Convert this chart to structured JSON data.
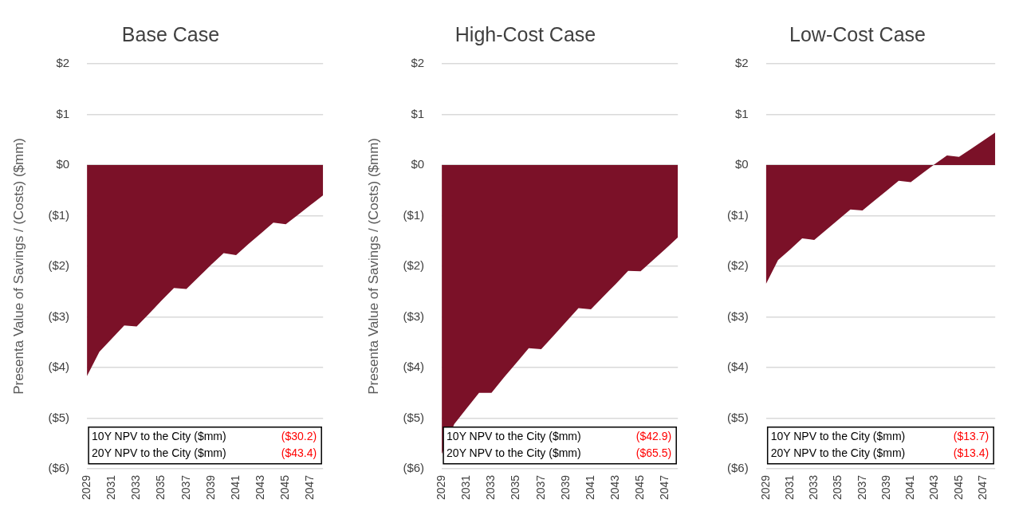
{
  "chart_data": [
    {
      "type": "area",
      "title": "Base Case",
      "ylabel": "Presenta Value of Savings / (Costs) ($mm)",
      "categories": [
        "2029",
        null,
        "2031",
        null,
        "2033",
        null,
        "2035",
        null,
        "2037",
        null,
        "2039",
        null,
        "2041",
        null,
        "2043",
        null,
        "2045",
        null,
        "2047",
        null
      ],
      "series": [
        {
          "color": "#7b1128",
          "values": [
            -4.17,
            -3.69,
            -3.43,
            -3.17,
            -3.19,
            -2.94,
            -2.68,
            -2.43,
            -2.45,
            -2.21,
            -1.97,
            -1.74,
            -1.78,
            -1.56,
            -1.35,
            -1.14,
            -1.17,
            -0.98,
            -0.79,
            -0.6
          ]
        }
      ],
      "ylim": [
        -6,
        2
      ],
      "yticks": [
        {
          "value": -6,
          "label": "($6)"
        },
        {
          "value": -5,
          "label": "($5)"
        },
        {
          "value": -4,
          "label": "($4)"
        },
        {
          "value": -3,
          "label": "($3)"
        },
        {
          "value": -2,
          "label": "($2)"
        },
        {
          "value": -1,
          "label": "($1)"
        },
        {
          "value": 0,
          "label": "$0"
        },
        {
          "value": 1,
          "label": "$1"
        },
        {
          "value": 2,
          "label": "$2"
        }
      ],
      "grid": "y",
      "legend": false,
      "annotations": [
        "10Y NPV to the City ($mm)",
        "($30.2)",
        "20Y NPV to the City ($mm)",
        "($43.4)"
      ]
    },
    {
      "type": "area",
      "title": "High-Cost Case",
      "ylabel": "Presenta Value of Savings / (Costs) ($mm)",
      "categories": [
        "2029",
        null,
        "2031",
        null,
        "2033",
        null,
        "2035",
        null,
        "2037",
        null,
        "2039",
        null,
        "2041",
        null,
        "2043",
        null,
        "2045",
        null,
        "2047",
        null
      ],
      "series": [
        {
          "color": "#7b1128",
          "values": [
            -5.71,
            -5.12,
            -4.81,
            -4.5,
            -4.5,
            -4.2,
            -3.91,
            -3.62,
            -3.64,
            -3.37,
            -3.1,
            -2.83,
            -2.85,
            -2.6,
            -2.35,
            -2.09,
            -2.1,
            -1.88,
            -1.66,
            -1.43
          ]
        }
      ],
      "ylim": [
        -6,
        2
      ],
      "yticks": [
        {
          "value": -6,
          "label": "($6)"
        },
        {
          "value": -5,
          "label": "($5)"
        },
        {
          "value": -4,
          "label": "($4)"
        },
        {
          "value": -3,
          "label": "($3)"
        },
        {
          "value": -2,
          "label": "($2)"
        },
        {
          "value": -1,
          "label": "($1)"
        },
        {
          "value": 0,
          "label": "$0"
        },
        {
          "value": 1,
          "label": "$1"
        },
        {
          "value": 2,
          "label": "$2"
        }
      ],
      "grid": "y",
      "legend": false,
      "annotations": [
        "10Y NPV to the City ($mm)",
        "($42.9)",
        "20Y NPV to the City ($mm)",
        "($65.5)"
      ]
    },
    {
      "type": "area",
      "title": "Low-Cost Case",
      "categories": [
        "2029",
        null,
        "2031",
        null,
        "2033",
        null,
        "2035",
        null,
        "2037",
        null,
        "2039",
        null,
        "2041",
        null,
        "2043",
        null,
        "2045",
        null,
        "2047",
        null
      ],
      "series": [
        {
          "color": "#7b1128",
          "values": [
            -2.35,
            -1.88,
            -1.67,
            -1.45,
            -1.48,
            -1.28,
            -1.08,
            -0.88,
            -0.9,
            -0.7,
            -0.51,
            -0.31,
            -0.34,
            -0.16,
            0.02,
            0.19,
            0.16,
            0.32,
            0.48,
            0.64
          ]
        }
      ],
      "ylim": [
        -6,
        2
      ],
      "yticks": [
        {
          "value": -6,
          "label": "($6)"
        },
        {
          "value": -5,
          "label": "($5)"
        },
        {
          "value": -4,
          "label": "($4)"
        },
        {
          "value": -3,
          "label": "($3)"
        },
        {
          "value": -2,
          "label": "($2)"
        },
        {
          "value": -1,
          "label": "($1)"
        },
        {
          "value": 0,
          "label": "$0"
        },
        {
          "value": 1,
          "label": "$1"
        },
        {
          "value": 2,
          "label": "$2"
        }
      ],
      "grid": "y",
      "legend": false,
      "annotations": [
        "10Y NPV to the City ($mm)",
        "($13.7)",
        "20Y NPV to the City ($mm)",
        "($13.4)"
      ]
    }
  ]
}
